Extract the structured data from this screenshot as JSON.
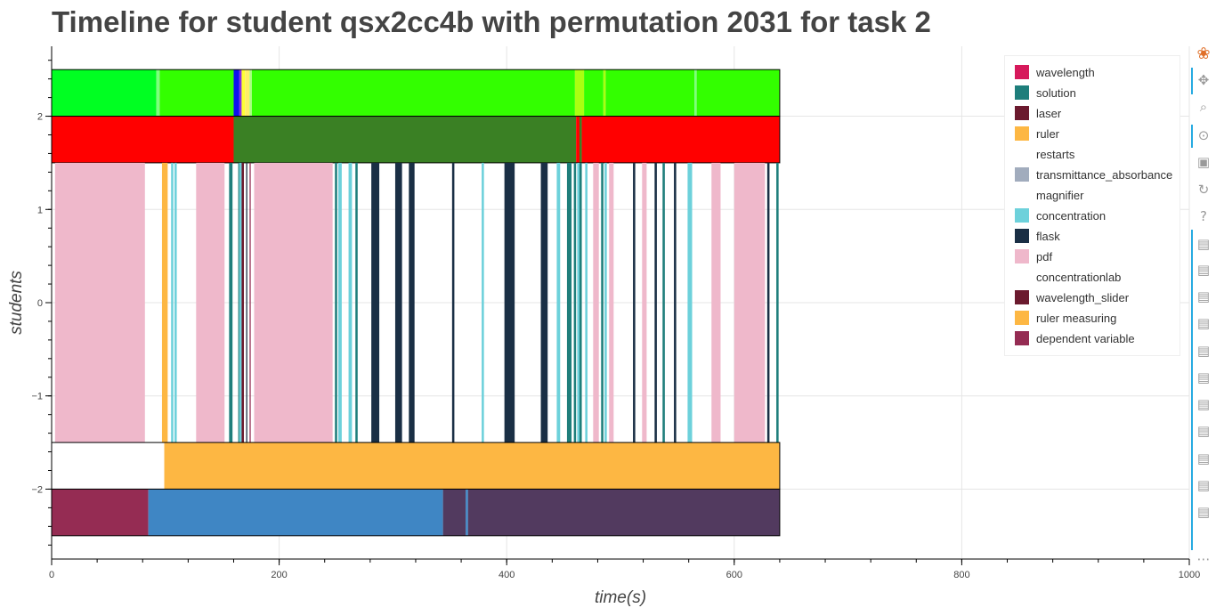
{
  "chart_data": {
    "type": "timeline",
    "title": "Timeline for student qsx2cc4b with permutation 2031 for task 2",
    "xlabel": "time(s)",
    "ylabel": "students",
    "xlim": [
      0,
      1000
    ],
    "ylim": [
      -2.75,
      2.75
    ],
    "x_ticks": [
      0,
      200,
      400,
      600,
      800,
      1000
    ],
    "y_ticks": [
      2,
      1,
      0,
      -1,
      -2
    ],
    "y_tick_labels": [
      "2",
      "1",
      "0",
      "−1",
      "−2"
    ],
    "grid": true,
    "legend_position": "top-right",
    "legend": [
      {
        "label": "wavelength",
        "color": "#d6195b"
      },
      {
        "label": "solution",
        "color": "#1e7e7b"
      },
      {
        "label": "laser",
        "color": "#6b1a2e"
      },
      {
        "label": "ruler",
        "color": "#fdb743"
      },
      {
        "label": "restarts",
        "color": "#ffffff"
      },
      {
        "label": "transmittance_absorbance",
        "color": "#a1acbd"
      },
      {
        "label": "magnifier",
        "color": "#ffffff"
      },
      {
        "label": "concentration",
        "color": "#6dd1db"
      },
      {
        "label": "flask",
        "color": "#1a2f45"
      },
      {
        "label": "pdf",
        "color": "#efb8cb"
      },
      {
        "label": "concentrationlab",
        "color": "#ffffff"
      },
      {
        "label": "wavelength_slider",
        "color": "#6b1a2e"
      },
      {
        "label": "ruler measuring",
        "color": "#fdb743"
      },
      {
        "label": "dependent variable",
        "color": "#952c53"
      }
    ],
    "lanes": [
      {
        "y": [
          2.0,
          2.5
        ],
        "segments": [
          {
            "x0": 0,
            "x1": 92,
            "color": "#00ff22"
          },
          {
            "x0": 92,
            "x1": 95,
            "color": "#7dff7d"
          },
          {
            "x0": 95,
            "x1": 160,
            "color": "#33ff00"
          },
          {
            "x0": 160,
            "x1": 165,
            "color": "#0f10ee"
          },
          {
            "x0": 165,
            "x1": 167,
            "color": "#8a2be2"
          },
          {
            "x0": 167,
            "x1": 170,
            "color": "#ffff33"
          },
          {
            "x0": 170,
            "x1": 174,
            "color": "#ffee66"
          },
          {
            "x0": 174,
            "x1": 176,
            "color": "#a8ff80"
          },
          {
            "x0": 176,
            "x1": 460,
            "color": "#33ff00"
          },
          {
            "x0": 460,
            "x1": 468,
            "color": "#aaff11"
          },
          {
            "x0": 468,
            "x1": 485,
            "color": "#33ff00"
          },
          {
            "x0": 485,
            "x1": 487,
            "color": "#aaff11"
          },
          {
            "x0": 487,
            "x1": 565,
            "color": "#33ff00"
          },
          {
            "x0": 565,
            "x1": 567,
            "color": "#7dff7d"
          },
          {
            "x0": 567,
            "x1": 640,
            "color": "#33ff00"
          }
        ]
      },
      {
        "y": [
          1.5,
          2.0
        ],
        "segments": [
          {
            "x0": 0,
            "x1": 160,
            "color": "#ff0000"
          },
          {
            "x0": 160,
            "x1": 461,
            "color": "#3a8024"
          },
          {
            "x0": 461,
            "x1": 464,
            "color": "#ff0000"
          },
          {
            "x0": 464,
            "x1": 466,
            "color": "#3a8024"
          },
          {
            "x0": 466,
            "x1": 640,
            "color": "#ff0000"
          }
        ]
      },
      {
        "y": [
          -1.5,
          1.5
        ],
        "segments": [
          {
            "x0": 3,
            "x1": 82,
            "color": "#efb8cb"
          },
          {
            "x0": 97,
            "x1": 102,
            "color": "#fdb743"
          },
          {
            "x0": 105,
            "x1": 107,
            "color": "#6dd1db"
          },
          {
            "x0": 108,
            "x1": 110,
            "color": "#6dd1db"
          },
          {
            "x0": 127,
            "x1": 152,
            "color": "#efb8cb"
          },
          {
            "x0": 156,
            "x1": 159,
            "color": "#1e7e7b"
          },
          {
            "x0": 164,
            "x1": 165,
            "color": "#1e7e7b"
          },
          {
            "x0": 165,
            "x1": 167,
            "color": "#6dd1db"
          },
          {
            "x0": 167,
            "x1": 169,
            "color": "#6b1a2e"
          },
          {
            "x0": 171,
            "x1": 172,
            "color": "#1a2f45"
          },
          {
            "x0": 174,
            "x1": 175,
            "color": "#952c53"
          },
          {
            "x0": 178,
            "x1": 247,
            "color": "#efb8cb"
          },
          {
            "x0": 249,
            "x1": 251,
            "color": "#1e7e7b"
          },
          {
            "x0": 252,
            "x1": 255,
            "color": "#6dd1db"
          },
          {
            "x0": 261,
            "x1": 264,
            "color": "#6dd1db"
          },
          {
            "x0": 267,
            "x1": 269,
            "color": "#1e7e7b"
          },
          {
            "x0": 281,
            "x1": 288,
            "color": "#1a2f45"
          },
          {
            "x0": 302,
            "x1": 308,
            "color": "#1a2f45"
          },
          {
            "x0": 314,
            "x1": 319,
            "color": "#1a2f45"
          },
          {
            "x0": 352,
            "x1": 354,
            "color": "#1a2f45"
          },
          {
            "x0": 378,
            "x1": 380,
            "color": "#6dd1db"
          },
          {
            "x0": 398,
            "x1": 407,
            "color": "#1a2f45"
          },
          {
            "x0": 430,
            "x1": 436,
            "color": "#1a2f45"
          },
          {
            "x0": 444,
            "x1": 447,
            "color": "#6dd1db"
          },
          {
            "x0": 453,
            "x1": 457,
            "color": "#1e7e7b"
          },
          {
            "x0": 459,
            "x1": 461,
            "color": "#1e7e7b"
          },
          {
            "x0": 462,
            "x1": 464,
            "color": "#6dd1db"
          },
          {
            "x0": 464,
            "x1": 466,
            "color": "#1e7e7b"
          },
          {
            "x0": 469,
            "x1": 471,
            "color": "#6dd1db"
          },
          {
            "x0": 476,
            "x1": 481,
            "color": "#efb8cb"
          },
          {
            "x0": 483,
            "x1": 485,
            "color": "#1e7e7b"
          },
          {
            "x0": 486,
            "x1": 488,
            "color": "#6dd1db"
          },
          {
            "x0": 490,
            "x1": 494,
            "color": "#efb8cb"
          },
          {
            "x0": 511,
            "x1": 513,
            "color": "#1a2f45"
          },
          {
            "x0": 519,
            "x1": 523,
            "color": "#efb8cb"
          },
          {
            "x0": 530,
            "x1": 532,
            "color": "#1a2f45"
          },
          {
            "x0": 537,
            "x1": 539,
            "color": "#1e7e7b"
          },
          {
            "x0": 547,
            "x1": 549,
            "color": "#1a2f45"
          },
          {
            "x0": 559,
            "x1": 563,
            "color": "#6dd1db"
          },
          {
            "x0": 580,
            "x1": 588,
            "color": "#efb8cb"
          },
          {
            "x0": 600,
            "x1": 627,
            "color": "#efb8cb"
          },
          {
            "x0": 629,
            "x1": 631,
            "color": "#1a2f45"
          },
          {
            "x0": 637,
            "x1": 639,
            "color": "#1e7e7b"
          }
        ]
      },
      {
        "y": [
          -2.0,
          -1.5
        ],
        "segments": [
          {
            "x0": 99,
            "x1": 640,
            "color": "#fdb743"
          }
        ]
      },
      {
        "y": [
          -2.5,
          -2.0
        ],
        "segments": [
          {
            "x0": 0,
            "x1": 85,
            "color": "#952c53"
          },
          {
            "x0": 85,
            "x1": 344,
            "color": "#3f86c4"
          },
          {
            "x0": 344,
            "x1": 364,
            "color": "#523a5f"
          },
          {
            "x0": 364,
            "x1": 366,
            "color": "#3f86c4"
          },
          {
            "x0": 366,
            "x1": 640,
            "color": "#523a5f"
          }
        ]
      }
    ]
  },
  "toolbar": {
    "tools": [
      {
        "name": "bokeh-logo-icon",
        "glyph": "❀"
      },
      {
        "name": "pan-tool-icon",
        "glyph": "✥"
      },
      {
        "name": "box-zoom-tool-icon",
        "glyph": "⌕"
      },
      {
        "name": "wheel-zoom-tool-icon",
        "glyph": "⊙"
      },
      {
        "name": "save-tool-icon",
        "glyph": "▣"
      },
      {
        "name": "reset-tool-icon",
        "glyph": "↻"
      },
      {
        "name": "help-tool-icon",
        "glyph": "?"
      },
      {
        "name": "hover-tool-icon",
        "glyph": "▤"
      },
      {
        "name": "hover-tool-icon",
        "glyph": "▤"
      },
      {
        "name": "hover-tool-icon",
        "glyph": "▤"
      },
      {
        "name": "hover-tool-icon",
        "glyph": "▤"
      },
      {
        "name": "hover-tool-icon",
        "glyph": "▤"
      },
      {
        "name": "hover-tool-icon",
        "glyph": "▤"
      },
      {
        "name": "hover-tool-icon",
        "glyph": "▤"
      },
      {
        "name": "hover-tool-icon",
        "glyph": "▤"
      },
      {
        "name": "hover-tool-icon",
        "glyph": "▤"
      },
      {
        "name": "hover-tool-icon",
        "glyph": "▤"
      },
      {
        "name": "hover-tool-icon",
        "glyph": "▤"
      },
      {
        "name": "more-tools-icon",
        "glyph": "⋯"
      }
    ]
  }
}
